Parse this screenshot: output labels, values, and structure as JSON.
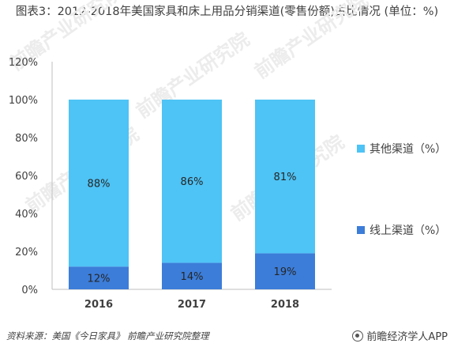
{
  "title": "图表3：2012-2018年美国家具和床上用品分销渠道(零售份额)占比情况 (单位：%)",
  "source": "资料来源：美国《今日家具》 前瞻产业研究院整理",
  "brand": "前瞻经济学人APP",
  "watermark": "前瞻产业研究院",
  "colors": {
    "online": "#3C7DD9",
    "other": "#4EC3F5",
    "axis": "#bfbfbf",
    "text": "#404040"
  },
  "chart_data": {
    "type": "bar",
    "stacked": true,
    "categories": [
      "2016",
      "2017",
      "2018"
    ],
    "series": [
      {
        "name": "线上渠道（%）",
        "values": [
          12,
          14,
          19
        ],
        "labels": [
          "12%",
          "14%",
          "19%"
        ]
      },
      {
        "name": "其他渠道（%）",
        "values": [
          88,
          86,
          81
        ],
        "labels": [
          "88%",
          "86%",
          "81%"
        ]
      }
    ],
    "yticks": [
      "0%",
      "20%",
      "40%",
      "60%",
      "80%",
      "100%",
      "120%"
    ],
    "ylim": [
      0,
      120
    ],
    "legend_position": "right"
  }
}
